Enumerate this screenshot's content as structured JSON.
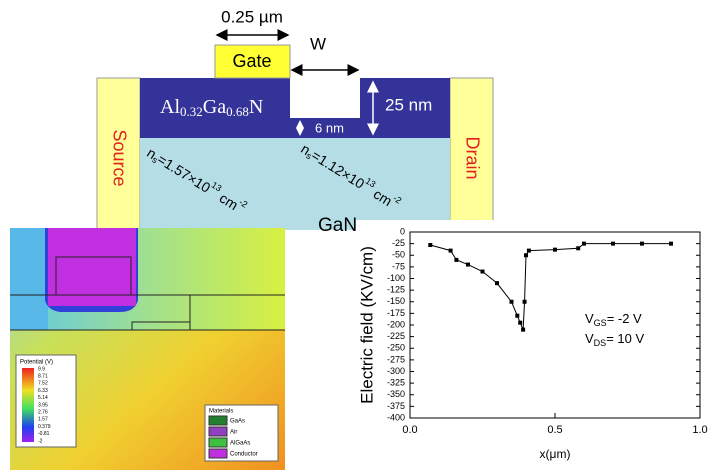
{
  "diagram": {
    "gate_length": "0.25 µm",
    "w": "W",
    "gate": "Gate",
    "source": "Source",
    "drain": "Drain",
    "gan": "GaN",
    "barrier": {
      "a": "Al",
      "a_sub": "0.32",
      "b": "Ga",
      "b_sub": "0.68",
      "c": "N"
    },
    "thickness": "25 nm",
    "recess": "6 nm",
    "ns_left": {
      "n": "n",
      "sub": "s",
      "mant": "=1.57×10",
      "exp": "13",
      "unit": " cm",
      "unit_exp": "-2"
    },
    "ns_right": {
      "n": "n",
      "sub": "s",
      "mant": "=1.12×10",
      "exp": "13",
      "unit": " cm",
      "unit_exp": "-2"
    }
  },
  "simulation": {
    "potential_title": "Potential (V)",
    "potential_levels": [
      "9.9",
      "8.71",
      "7.52",
      "6.33",
      "5.14",
      "3.95",
      "2.76",
      "1.57",
      "0.379",
      "-0.81",
      "-2"
    ],
    "materials_title": "Materials",
    "materials": [
      "GaAs",
      "Air",
      "AlGaAs",
      "Conductor"
    ]
  },
  "chart_data": {
    "type": "line",
    "y_label": "Electric field (KV/cm)",
    "x_label": "x(μm)",
    "annotations": [
      {
        "v": "V",
        "sub": "GS",
        "rest": "= -2 V"
      },
      {
        "v": "V",
        "sub": "DS",
        "rest": "= 10 V"
      }
    ],
    "color": "#000000",
    "x": [
      0.07,
      0.14,
      0.16,
      0.2,
      0.25,
      0.3,
      0.35,
      0.37,
      0.38,
      0.39,
      0.395,
      0.4,
      0.41,
      0.5,
      0.58,
      0.6,
      0.7,
      0.8,
      0.9
    ],
    "values": [
      -28,
      -40,
      -60,
      -70,
      -85,
      -110,
      -150,
      -180,
      -195,
      -210,
      -150,
      -50,
      -40,
      -38,
      -35,
      -25,
      -25,
      -25,
      -25
    ],
    "xlim": [
      0,
      1
    ],
    "ylim": [
      -400,
      0
    ],
    "xticks": [
      {
        "value": 0,
        "label": "0.0"
      },
      {
        "value": 0.5,
        "label": "0.5"
      },
      {
        "value": 1,
        "label": "1.0"
      }
    ],
    "yticks": [
      -400,
      -375,
      -350,
      -325,
      -300,
      -275,
      -250,
      -225,
      -200,
      -175,
      -150,
      -125,
      -100,
      -75,
      -50,
      -25,
      0
    ]
  }
}
